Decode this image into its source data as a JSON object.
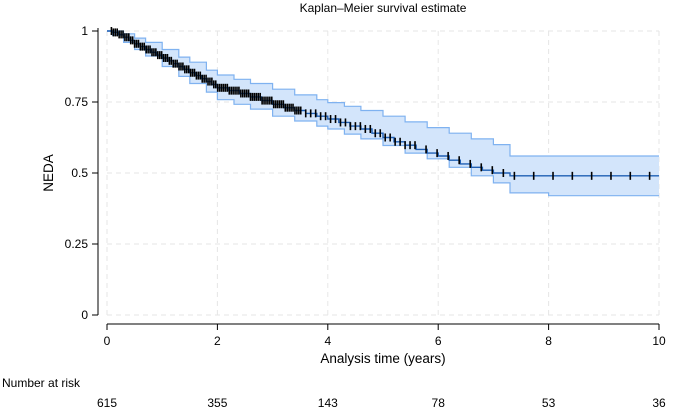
{
  "chart_data": {
    "type": "line",
    "title": "Kaplan–Meier survival estimate",
    "xlabel": "Analysis time (years)",
    "ylabel": "NEDA",
    "xlim": [
      0,
      10
    ],
    "ylim": [
      0,
      1
    ],
    "x_ticks": [
      0,
      2,
      4,
      6,
      8,
      10
    ],
    "y_ticks": [
      0,
      0.25,
      0.5,
      0.75,
      1
    ],
    "y_tick_labels": [
      "0",
      "0.25",
      "0.5",
      "0.75",
      "1"
    ],
    "grid": true,
    "series": [
      {
        "name": "Survival estimate",
        "color": "#1f5fb4",
        "points": [
          [
            0,
            1
          ],
          [
            0.05,
            1
          ],
          [
            0.1,
            0.995
          ],
          [
            0.2,
            0.988
          ],
          [
            0.3,
            0.978
          ],
          [
            0.4,
            0.967
          ],
          [
            0.5,
            0.955
          ],
          [
            0.6,
            0.945
          ],
          [
            0.7,
            0.935
          ],
          [
            0.8,
            0.925
          ],
          [
            0.9,
            0.915
          ],
          [
            1.0,
            0.905
          ],
          [
            1.1,
            0.895
          ],
          [
            1.2,
            0.885
          ],
          [
            1.3,
            0.875
          ],
          [
            1.4,
            0.865
          ],
          [
            1.5,
            0.853
          ],
          [
            1.6,
            0.843
          ],
          [
            1.7,
            0.832
          ],
          [
            1.8,
            0.822
          ],
          [
            1.9,
            0.812
          ],
          [
            2.0,
            0.8
          ],
          [
            2.2,
            0.79
          ],
          [
            2.4,
            0.78
          ],
          [
            2.6,
            0.768
          ],
          [
            2.8,
            0.755
          ],
          [
            3.0,
            0.742
          ],
          [
            3.2,
            0.73
          ],
          [
            3.4,
            0.72
          ],
          [
            3.6,
            0.71
          ],
          [
            3.8,
            0.7
          ],
          [
            4.0,
            0.69
          ],
          [
            4.2,
            0.678
          ],
          [
            4.4,
            0.665
          ],
          [
            4.6,
            0.655
          ],
          [
            4.8,
            0.64
          ],
          [
            5.0,
            0.625
          ],
          [
            5.2,
            0.61
          ],
          [
            5.4,
            0.598
          ],
          [
            5.6,
            0.583
          ],
          [
            5.8,
            0.57
          ],
          [
            6.0,
            0.56
          ],
          [
            6.2,
            0.545
          ],
          [
            6.4,
            0.532
          ],
          [
            6.6,
            0.52
          ],
          [
            6.8,
            0.51
          ],
          [
            7.0,
            0.5
          ],
          [
            7.3,
            0.49
          ],
          [
            7.6,
            0.49
          ],
          [
            8.0,
            0.49
          ],
          [
            9.0,
            0.49
          ],
          [
            10.0,
            0.49
          ]
        ]
      },
      {
        "name": "95% CI upper",
        "color": "#7fb2f0",
        "points": [
          [
            0,
            1
          ],
          [
            0.1,
            1
          ],
          [
            0.3,
            0.99
          ],
          [
            0.5,
            0.975
          ],
          [
            0.7,
            0.96
          ],
          [
            1.0,
            0.935
          ],
          [
            1.3,
            0.908
          ],
          [
            1.5,
            0.89
          ],
          [
            1.8,
            0.862
          ],
          [
            2.0,
            0.845
          ],
          [
            2.3,
            0.83
          ],
          [
            2.6,
            0.815
          ],
          [
            3.0,
            0.795
          ],
          [
            3.4,
            0.775
          ],
          [
            3.8,
            0.758
          ],
          [
            4.0,
            0.748
          ],
          [
            4.3,
            0.735
          ],
          [
            4.6,
            0.72
          ],
          [
            5.0,
            0.7
          ],
          [
            5.4,
            0.68
          ],
          [
            5.8,
            0.66
          ],
          [
            6.2,
            0.64
          ],
          [
            6.6,
            0.62
          ],
          [
            7.0,
            0.6
          ],
          [
            7.3,
            0.56
          ],
          [
            8.0,
            0.56
          ],
          [
            9.0,
            0.56
          ],
          [
            10.0,
            0.56
          ]
        ]
      },
      {
        "name": "95% CI lower",
        "color": "#7fb2f0",
        "points": [
          [
            0,
            1
          ],
          [
            0.1,
            0.985
          ],
          [
            0.3,
            0.96
          ],
          [
            0.5,
            0.935
          ],
          [
            0.7,
            0.912
          ],
          [
            1.0,
            0.875
          ],
          [
            1.3,
            0.84
          ],
          [
            1.5,
            0.815
          ],
          [
            1.8,
            0.785
          ],
          [
            2.0,
            0.758
          ],
          [
            2.3,
            0.742
          ],
          [
            2.6,
            0.725
          ],
          [
            3.0,
            0.7
          ],
          [
            3.4,
            0.683
          ],
          [
            3.8,
            0.665
          ],
          [
            4.0,
            0.655
          ],
          [
            4.3,
            0.637
          ],
          [
            4.6,
            0.62
          ],
          [
            5.0,
            0.597
          ],
          [
            5.4,
            0.57
          ],
          [
            5.8,
            0.55
          ],
          [
            6.2,
            0.52
          ],
          [
            6.6,
            0.49
          ],
          [
            7.0,
            0.465
          ],
          [
            7.3,
            0.43
          ],
          [
            8.0,
            0.42
          ],
          [
            9.0,
            0.42
          ],
          [
            10.0,
            0.42
          ]
        ]
      }
    ],
    "number_at_risk": {
      "label": "Number at risk",
      "times": [
        0,
        2,
        4,
        6,
        8,
        10
      ],
      "values": [
        "615",
        "355",
        "143",
        "78",
        "53",
        "36"
      ]
    }
  }
}
